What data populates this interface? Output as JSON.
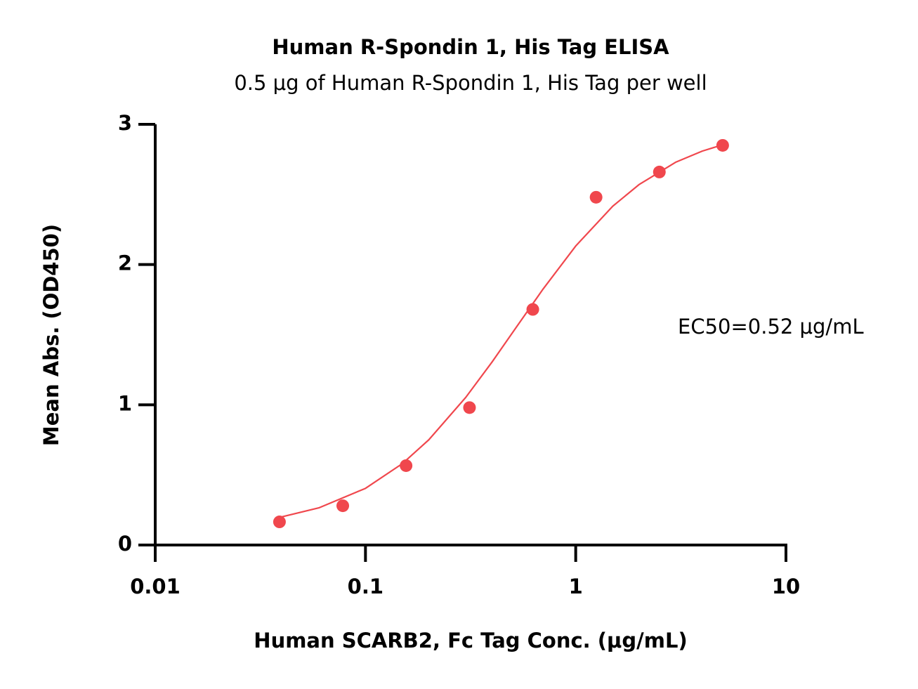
{
  "chart_data": {
    "type": "scatter",
    "title": "Human R-Spondin 1, His Tag ELISA",
    "subtitle": "0.5 μg of Human R-Spondin 1, His Tag per well",
    "x_label": "Human SCARB2, Fc Tag Conc. (μg/mL)",
    "y_label": "Mean Abs. (OD450)",
    "annotation": "EC50=0.52 μg/mL",
    "x": [
      0.039,
      0.078,
      0.156,
      0.3125,
      0.625,
      1.25,
      2.5,
      5
    ],
    "series": [
      {
        "color": "#f0474d",
        "values": [
          0.165,
          0.28,
          0.566,
          0.98,
          1.68,
          2.48,
          2.66,
          2.85
        ]
      }
    ],
    "fit": {
      "color": "#f0474d",
      "x": [
        0.039,
        0.06,
        0.1,
        0.15,
        0.2,
        0.3,
        0.4,
        0.52,
        0.7,
        1,
        1.5,
        2,
        3,
        4,
        5
      ],
      "values": [
        0.197,
        0.265,
        0.404,
        0.581,
        0.75,
        1.053,
        1.305,
        1.55,
        1.826,
        2.132,
        2.416,
        2.57,
        2.731,
        2.809,
        2.854
      ]
    },
    "xscale": "log",
    "xlim": [
      0.01,
      10
    ],
    "xticks": [
      0.01,
      0.1,
      1,
      10
    ],
    "ylim": [
      0,
      3
    ],
    "yticks": [
      0,
      1,
      2,
      3
    ],
    "grid": false
  }
}
